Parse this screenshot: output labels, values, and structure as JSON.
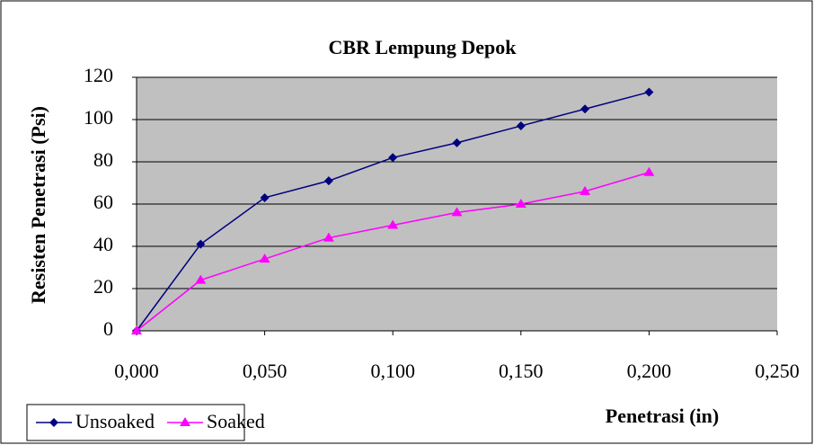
{
  "chart_data": {
    "type": "line",
    "title": "CBR Lempung Depok",
    "x_label": "Penetrasi (in)",
    "y_label": "Resisten Penetrasi (Psi)",
    "x": [
      0,
      0.025,
      0.05,
      0.075,
      0.1,
      0.125,
      0.15,
      0.175,
      0.2
    ],
    "series": [
      {
        "name": "Unsoaked",
        "color": "#000080",
        "marker": "diamond",
        "values": [
          0,
          41,
          63,
          71,
          82,
          89,
          97,
          105,
          113
        ]
      },
      {
        "name": "Soaked",
        "color": "#ff00ff",
        "marker": "triangle",
        "values": [
          0,
          24,
          34,
          44,
          50,
          56,
          60,
          66,
          75
        ]
      }
    ],
    "xlim": [
      0,
      0.25
    ],
    "xticks": [
      {
        "value": 0,
        "label": "0,000"
      },
      {
        "value": 0.05,
        "label": "0,050"
      },
      {
        "value": 0.1,
        "label": "0,100"
      },
      {
        "value": 0.15,
        "label": "0,150"
      },
      {
        "value": 0.2,
        "label": "0,200"
      },
      {
        "value": 0.25,
        "label": "0,250"
      }
    ],
    "ylim": [
      0,
      120
    ],
    "yticks": [
      0,
      20,
      40,
      60,
      80,
      100,
      120
    ],
    "grid": true,
    "legend": "bottom-left"
  }
}
